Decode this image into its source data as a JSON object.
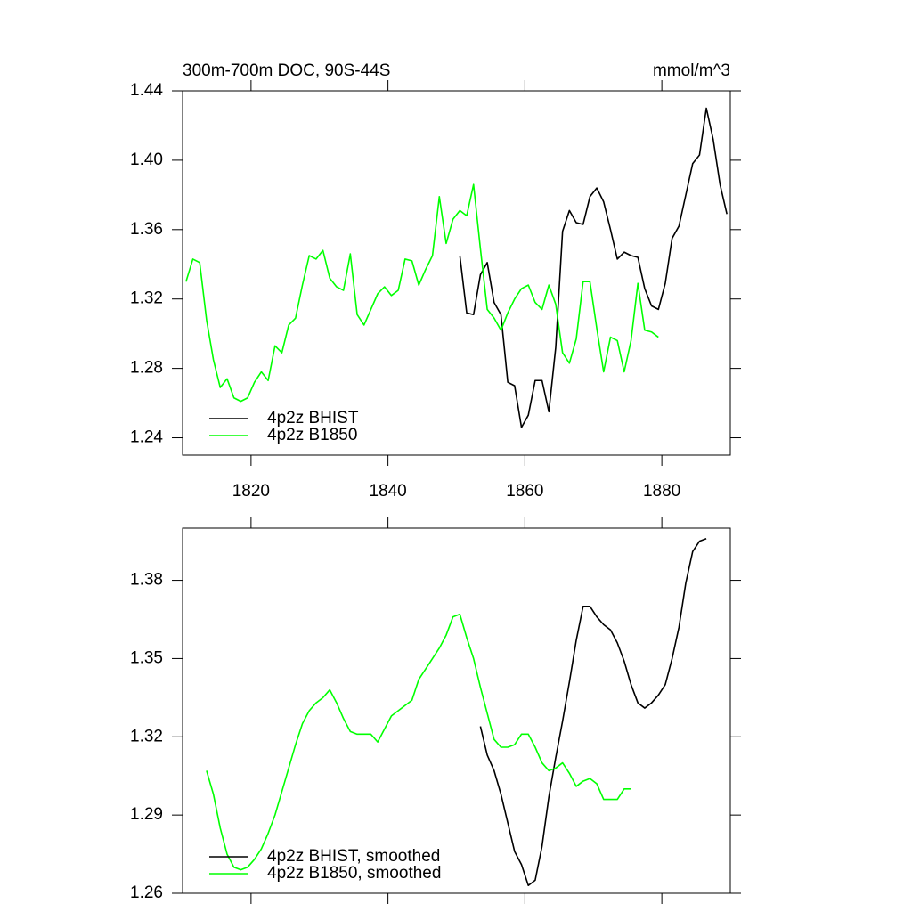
{
  "chart_data": [
    {
      "type": "line",
      "title": "300m-700m DOC, 90S-44S",
      "units": "mmol/m^3",
      "xlim": [
        1810,
        1890
      ],
      "xticks": [
        1820,
        1840,
        1860,
        1880
      ],
      "x_tick_labels": true,
      "ylim": [
        1.23,
        1.44
      ],
      "yticks": [
        1.44,
        {
          "value": 1.4,
          "label": "1.40"
        },
        1.36,
        1.32,
        1.28,
        1.24
      ],
      "legend": "lower left",
      "series": [
        {
          "name": "4p2z BHIST",
          "color": "#000000",
          "x": [
            1850.5,
            1851.5,
            1852.5,
            1853.5,
            1854.5,
            1855.5,
            1856.5,
            1857.5,
            1858.5,
            1859.5,
            1860.5,
            1861.5,
            1862.5,
            1863.5,
            1864.5,
            1865.5,
            1866.5,
            1867.5,
            1868.5,
            1869.5,
            1870.5,
            1871.5,
            1872.5,
            1873.5,
            1874.5,
            1875.5,
            1876.5,
            1877.5,
            1878.5,
            1879.5,
            1880.5,
            1881.5,
            1882.5,
            1883.5,
            1884.5,
            1885.5,
            1886.5,
            1887.5,
            1888.5,
            1889.5
          ],
          "values": [
            1.345,
            1.312,
            1.311,
            1.334,
            1.341,
            1.318,
            1.311,
            1.272,
            1.27,
            1.246,
            1.253,
            1.273,
            1.273,
            1.255,
            1.292,
            1.359,
            1.371,
            1.364,
            1.363,
            1.379,
            1.384,
            1.376,
            1.36,
            1.343,
            1.347,
            1.345,
            1.344,
            1.326,
            1.316,
            1.314,
            1.329,
            1.355,
            1.362,
            1.38,
            1.398,
            1.403,
            1.43,
            1.412,
            1.386,
            1.369
          ]
        },
        {
          "name": "4p2z B1850",
          "color": "#00ff00",
          "x": [
            1810.5,
            1811.5,
            1812.5,
            1813.5,
            1814.5,
            1815.5,
            1816.5,
            1817.5,
            1818.5,
            1819.5,
            1820.5,
            1821.5,
            1822.5,
            1823.5,
            1824.5,
            1825.5,
            1826.5,
            1827.5,
            1828.5,
            1829.5,
            1830.5,
            1831.5,
            1832.5,
            1833.5,
            1834.5,
            1835.5,
            1836.5,
            1837.5,
            1838.5,
            1839.5,
            1840.5,
            1841.5,
            1842.5,
            1843.5,
            1844.5,
            1845.5,
            1846.5,
            1847.5,
            1848.5,
            1849.5,
            1850.5,
            1851.5,
            1852.5,
            1853.5,
            1854.5,
            1855.5,
            1856.5,
            1857.5,
            1858.5,
            1859.5,
            1860.5,
            1861.5,
            1862.5,
            1863.5,
            1864.5,
            1865.5,
            1866.5,
            1867.5,
            1868.5,
            1869.5,
            1870.5,
            1871.5,
            1872.5,
            1873.5,
            1874.5,
            1875.5,
            1876.5,
            1877.5,
            1878.5,
            1879.5
          ],
          "values": [
            1.33,
            1.343,
            1.341,
            1.308,
            1.285,
            1.269,
            1.274,
            1.263,
            1.261,
            1.263,
            1.272,
            1.278,
            1.273,
            1.293,
            1.289,
            1.305,
            1.309,
            1.328,
            1.345,
            1.343,
            1.348,
            1.332,
            1.327,
            1.325,
            1.346,
            1.311,
            1.305,
            1.314,
            1.323,
            1.327,
            1.322,
            1.325,
            1.343,
            1.342,
            1.328,
            1.337,
            1.345,
            1.379,
            1.352,
            1.366,
            1.371,
            1.368,
            1.386,
            1.349,
            1.314,
            1.309,
            1.302,
            1.312,
            1.32,
            1.326,
            1.328,
            1.318,
            1.314,
            1.328,
            1.317,
            1.289,
            1.283,
            1.297,
            1.33,
            1.33,
            1.303,
            1.278,
            1.298,
            1.296,
            1.278,
            1.296,
            1.329,
            1.302,
            1.301,
            1.298
          ]
        }
      ]
    },
    {
      "type": "line",
      "xlim": [
        1810,
        1890
      ],
      "xticks": [
        1820,
        1840,
        1860,
        1880
      ],
      "x_tick_labels": false,
      "ylim": [
        1.26,
        1.4
      ],
      "yticks": [
        1.38,
        1.35,
        1.32,
        1.29,
        1.26
      ],
      "legend": "lower left",
      "series": [
        {
          "name": "4p2z BHIST, smoothed",
          "color": "#000000",
          "x": [
            1853.5,
            1854.5,
            1855.5,
            1856.5,
            1857.5,
            1858.5,
            1859.5,
            1860.5,
            1861.5,
            1862.5,
            1863.5,
            1864.5,
            1865.5,
            1866.5,
            1867.5,
            1868.5,
            1869.5,
            1870.5,
            1871.5,
            1872.5,
            1873.5,
            1874.5,
            1875.5,
            1876.5,
            1877.5,
            1878.5,
            1879.5,
            1880.5,
            1881.5,
            1882.5,
            1883.5,
            1884.5,
            1885.5,
            1886.5
          ],
          "values": [
            1.324,
            1.313,
            1.307,
            1.298,
            1.287,
            1.276,
            1.271,
            1.263,
            1.265,
            1.278,
            1.297,
            1.312,
            1.326,
            1.341,
            1.357,
            1.37,
            1.37,
            1.366,
            1.363,
            1.361,
            1.356,
            1.349,
            1.34,
            1.333,
            1.331,
            1.333,
            1.336,
            1.34,
            1.35,
            1.362,
            1.379,
            1.391,
            1.395,
            1.396
          ]
        },
        {
          "name": "4p2z B1850, smoothed",
          "color": "#00ff00",
          "x": [
            1813.5,
            1814.5,
            1815.5,
            1816.5,
            1817.5,
            1818.5,
            1819.5,
            1820.5,
            1821.5,
            1822.5,
            1823.5,
            1824.5,
            1825.5,
            1826.5,
            1827.5,
            1828.5,
            1829.5,
            1830.5,
            1831.5,
            1832.5,
            1833.5,
            1834.5,
            1835.5,
            1836.5,
            1837.5,
            1838.5,
            1839.5,
            1840.5,
            1841.5,
            1842.5,
            1843.5,
            1844.5,
            1845.5,
            1846.5,
            1847.5,
            1848.5,
            1849.5,
            1850.5,
            1851.5,
            1852.5,
            1853.5,
            1854.5,
            1855.5,
            1856.5,
            1857.5,
            1858.5,
            1859.5,
            1860.5,
            1861.5,
            1862.5,
            1863.5,
            1864.5,
            1865.5,
            1866.5,
            1867.5,
            1868.5,
            1869.5,
            1870.5,
            1871.5,
            1872.5,
            1873.5,
            1874.5,
            1875.5
          ],
          "values": [
            1.307,
            1.298,
            1.285,
            1.275,
            1.27,
            1.269,
            1.27,
            1.273,
            1.277,
            1.283,
            1.29,
            1.299,
            1.308,
            1.317,
            1.325,
            1.33,
            1.333,
            1.335,
            1.338,
            1.333,
            1.327,
            1.322,
            1.321,
            1.321,
            1.321,
            1.318,
            1.323,
            1.328,
            1.33,
            1.332,
            1.334,
            1.342,
            1.346,
            1.35,
            1.354,
            1.359,
            1.366,
            1.367,
            1.358,
            1.35,
            1.339,
            1.329,
            1.319,
            1.316,
            1.316,
            1.317,
            1.321,
            1.321,
            1.316,
            1.31,
            1.307,
            1.308,
            1.31,
            1.306,
            1.301,
            1.303,
            1.304,
            1.302,
            1.296,
            1.296,
            1.296,
            1.3,
            1.3
          ]
        }
      ]
    }
  ]
}
